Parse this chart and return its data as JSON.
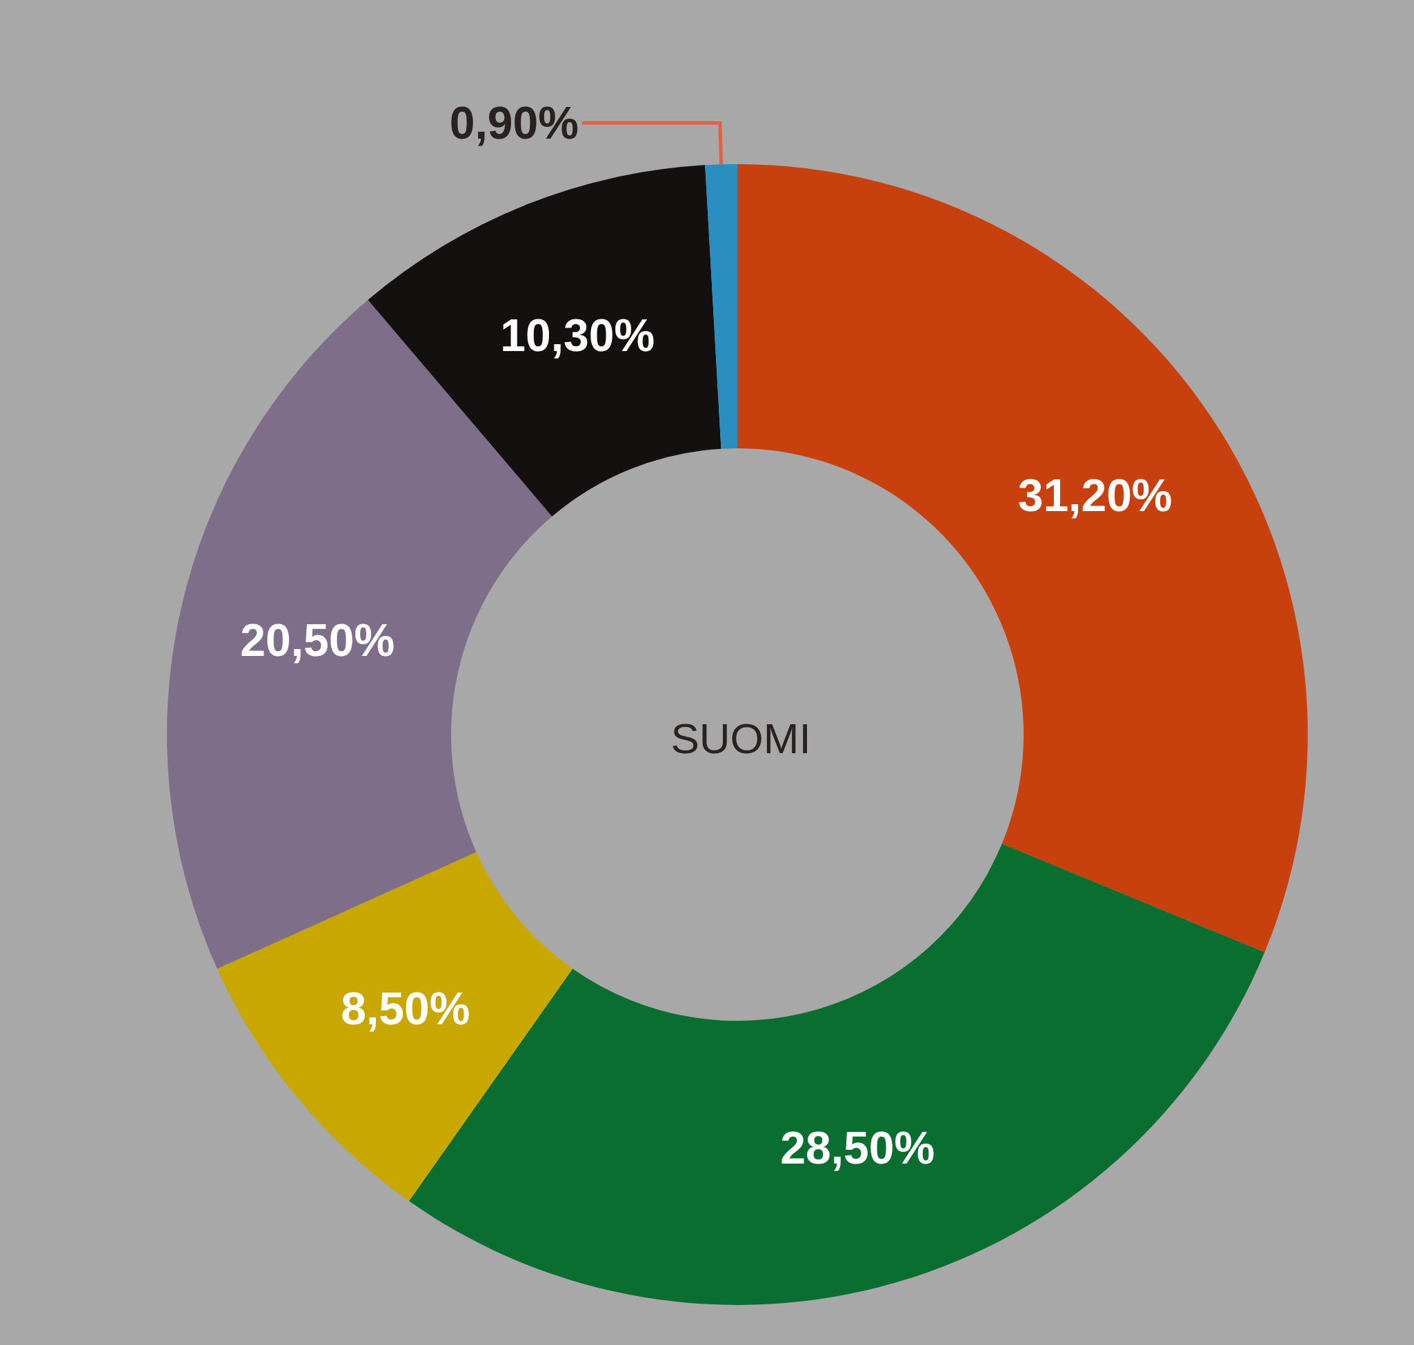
{
  "chart_data": {
    "type": "donut",
    "title": "SUOMI",
    "categories": [
      null,
      null,
      null,
      null,
      null,
      null
    ],
    "values": [
      31.2,
      28.5,
      8.5,
      20.5,
      10.3,
      0.9
    ],
    "value_labels": [
      "31,20%",
      "28,50%",
      "8,50%",
      "20,50%",
      "10,30%",
      "0,90%"
    ],
    "colors": [
      "#c9400f",
      "#0a6e30",
      "#c8a800",
      "#7e6e8a",
      "#141010",
      "#2a8fc0"
    ]
  }
}
